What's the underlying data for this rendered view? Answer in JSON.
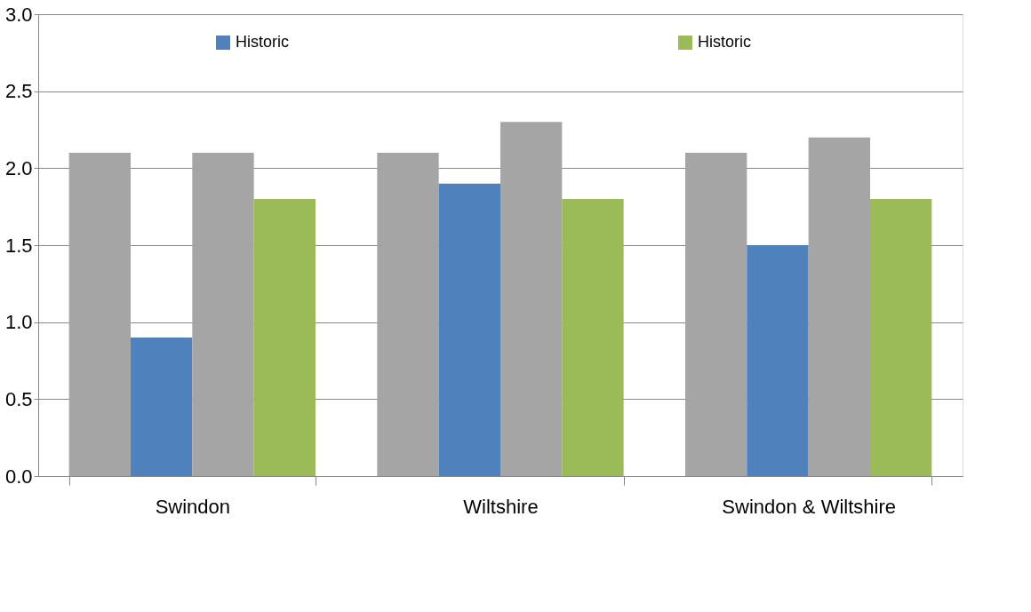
{
  "chart_data": {
    "type": "bar",
    "categories": [
      "Swindon",
      "Wiltshire",
      "Swindon & Wiltshire"
    ],
    "series": [
      {
        "color": "#a5a5a5",
        "values": [
          2.1,
          2.1,
          2.1
        ]
      },
      {
        "name": "Historic",
        "color": "#4f81bd",
        "values": [
          0.9,
          1.9,
          1.5
        ]
      },
      {
        "color": "#a5a5a5",
        "values": [
          2.1,
          2.3,
          2.2
        ]
      },
      {
        "name": "Historic",
        "color": "#9bbb59",
        "values": [
          1.8,
          1.8,
          1.8
        ]
      }
    ],
    "ylim": [
      0,
      3
    ],
    "yticks": [
      {
        "value": 0,
        "label": "0.0"
      },
      {
        "value": 0.5,
        "label": "0.5"
      },
      {
        "value": 1,
        "label": "1.0"
      },
      {
        "value": 1.5,
        "label": "1.5"
      },
      {
        "value": 2,
        "label": "2.0"
      },
      {
        "value": 2.5,
        "label": "2.5"
      },
      {
        "value": 3,
        "label": "3.0"
      }
    ],
    "grid": "y",
    "legend": "top"
  }
}
